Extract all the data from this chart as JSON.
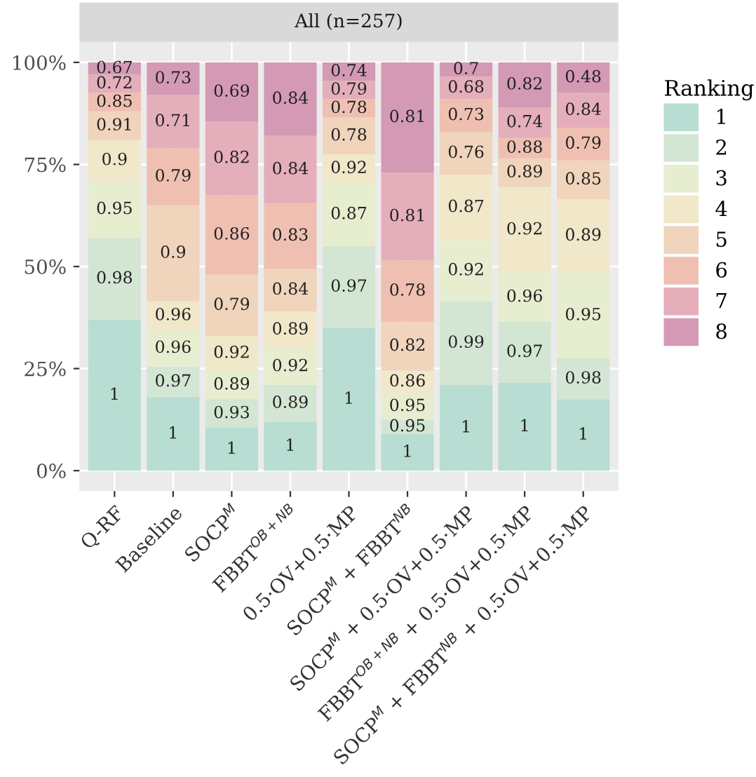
{
  "chart_data": {
    "type": "bar",
    "stacked": true,
    "title": "All (n=257)",
    "legend_title": "Ranking",
    "legend": "right",
    "grid": true,
    "categories": [
      "Q-RF",
      "Baseline",
      "SOCP$^{M}$",
      "FBBT$^{OB+NB}$",
      "0.5·OV+0.5·MP",
      "SOCP$^{M}$ + FBBT$^{NB}$",
      "SOCP$^{M}$ + 0.5·OV+0.5·MP",
      "FBBT$^{OB+NB}$ + 0.5·OV+0.5·MP",
      "SOCP$^{M}$ + FBBT$^{NB}$ + 0.5·OV+0.5·MP"
    ],
    "ylim": [
      -5,
      105
    ],
    "yticks": [
      {
        "value": 0,
        "label": "0%"
      },
      {
        "value": 25,
        "label": "25%"
      },
      {
        "value": 50,
        "label": "50%"
      },
      {
        "value": 75,
        "label": "75%"
      },
      {
        "value": 100,
        "label": "100%"
      }
    ],
    "series": [
      {
        "name": "1",
        "color": "#b8ddd2",
        "values": [
          37,
          18,
          10.5,
          12,
          35,
          9,
          21,
          21.5,
          17.5
        ]
      },
      {
        "name": "2",
        "color": "#d3e6d4",
        "values": [
          20,
          7.5,
          7,
          9,
          20,
          3.5,
          20.5,
          15,
          10
        ]
      },
      {
        "name": "3",
        "color": "#e7eed0",
        "values": [
          14,
          9,
          7,
          9,
          15.5,
          6.5,
          15,
          12,
          21
        ]
      },
      {
        "name": "4",
        "color": "#f1e7c9",
        "values": [
          10,
          7,
          8.5,
          9,
          7,
          5.5,
          16,
          21,
          18
        ]
      },
      {
        "name": "5",
        "color": "#f0d4bb",
        "values": [
          7,
          23.5,
          15,
          10.5,
          9,
          12,
          10.5,
          7,
          9.5
        ]
      },
      {
        "name": "6",
        "color": "#efc0b1",
        "values": [
          4.5,
          14,
          19.5,
          16,
          4.5,
          15,
          8,
          5,
          8
        ]
      },
      {
        "name": "7",
        "color": "#e5aebb",
        "values": [
          4.5,
          13,
          18,
          16.5,
          4.5,
          21.5,
          5.5,
          7.5,
          8.5
        ]
      },
      {
        "name": "8",
        "color": "#d49ab5",
        "values": [
          3,
          8,
          14.5,
          18,
          4.5,
          27,
          3.5,
          11,
          7.5
        ]
      }
    ],
    "annotations": [
      "1",
      "0.98",
      "0.95",
      "0.9",
      "0.91",
      "0.85",
      "0.72",
      "0.67",
      "1",
      "0.97",
      "0.96",
      "0.96",
      "0.9",
      "0.79",
      "0.71",
      "0.73",
      "1",
      "0.93",
      "0.89",
      "0.92",
      "0.79",
      "0.86",
      "0.82",
      "0.69",
      "1",
      "0.89",
      "0.92",
      "0.89",
      "0.84",
      "0.83",
      "0.84",
      "0.84",
      "1",
      "0.97",
      "0.87",
      "0.92",
      "0.78",
      "0.78",
      "0.79",
      "0.74",
      "1",
      "0.95",
      "0.95",
      "0.86",
      "0.82",
      "0.78",
      "0.81",
      "0.81",
      "1",
      "0.99",
      "0.92",
      "0.87",
      "0.76",
      "0.73",
      "0.68",
      "0.7",
      "1",
      "0.97",
      "0.96",
      "0.92",
      "0.89",
      "0.88",
      "0.74",
      "0.82",
      "1",
      "0.98",
      "0.95",
      "0.89",
      "0.85",
      "0.79",
      "0.84",
      "0.48"
    ]
  }
}
